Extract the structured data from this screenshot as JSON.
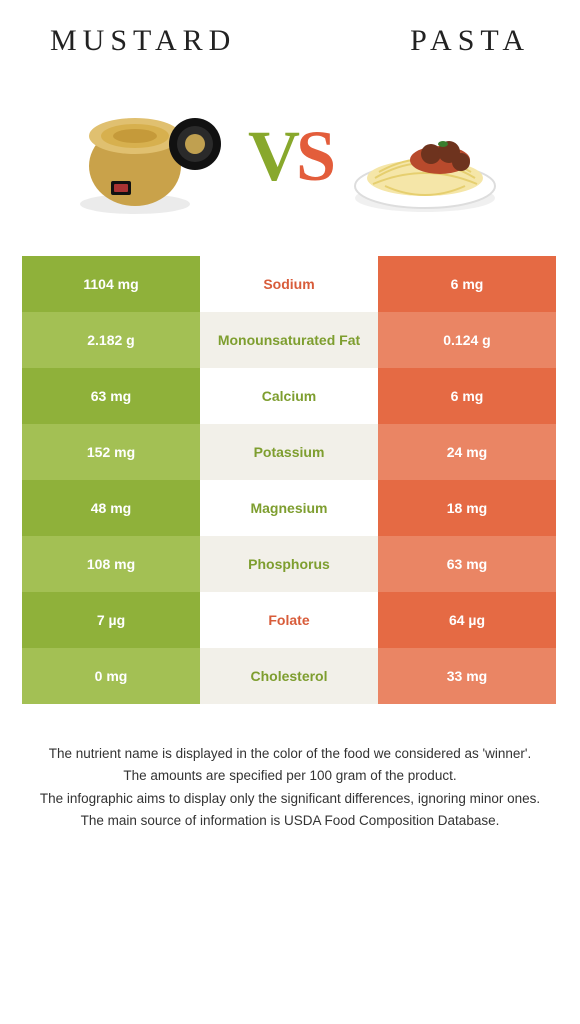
{
  "titles": {
    "left": "Mustard",
    "right": "Pasta"
  },
  "vs": {
    "v": "V",
    "s": "S"
  },
  "colors": {
    "left_odd": "#8fb13a",
    "left_even": "#a3c054",
    "right_odd": "#e56a44",
    "right_even": "#ea8564",
    "mid_odd": "#ffffff",
    "mid_even": "#f2f0e9",
    "win_left": "#7e9e2f",
    "win_right": "#d85c3a"
  },
  "rows": [
    {
      "left": "1104 mg",
      "label": "Sodium",
      "right": "6 mg",
      "winner": "right"
    },
    {
      "left": "2.182 g",
      "label": "Monounsaturated Fat",
      "right": "0.124 g",
      "winner": "left"
    },
    {
      "left": "63 mg",
      "label": "Calcium",
      "right": "6 mg",
      "winner": "left"
    },
    {
      "left": "152 mg",
      "label": "Potassium",
      "right": "24 mg",
      "winner": "left"
    },
    {
      "left": "48 mg",
      "label": "Magnesium",
      "right": "18 mg",
      "winner": "left"
    },
    {
      "left": "108 mg",
      "label": "Phosphorus",
      "right": "63 mg",
      "winner": "left"
    },
    {
      "left": "7 µg",
      "label": "Folate",
      "right": "64 µg",
      "winner": "right"
    },
    {
      "left": "0 mg",
      "label": "Cholesterol",
      "right": "33 mg",
      "winner": "left"
    }
  ],
  "footnotes": [
    "The nutrient name is displayed in the color of the food we considered as 'winner'.",
    "The amounts are specified per 100 gram of the product.",
    "The infographic aims to display only the significant differences, ignoring minor ones.",
    "The main source of information is USDA Food Composition Database."
  ]
}
